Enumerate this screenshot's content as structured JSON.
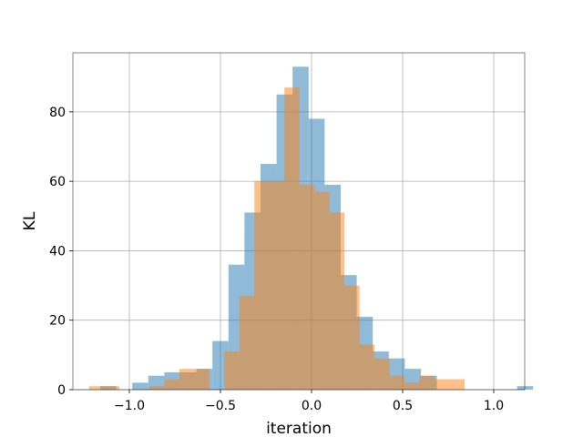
{
  "chart_data": {
    "type": "bar",
    "title": "",
    "xlabel": "iteration",
    "ylabel": "KL",
    "xlim": [
      -1.31,
      1.17
    ],
    "ylim": [
      0,
      97
    ],
    "x_ticks": [
      -1.0,
      -0.5,
      0.0,
      0.5,
      1.0
    ],
    "x_tick_labels": [
      "−1.0",
      "−0.5",
      "0.0",
      "0.5",
      "1.0"
    ],
    "y_ticks": [
      0,
      20,
      40,
      60,
      80
    ],
    "y_tick_labels": [
      "0",
      "20",
      "40",
      "60",
      "80"
    ],
    "grid": true,
    "legend": "none",
    "series": [
      {
        "color": "#1f77b4",
        "opacity": 0.5,
        "bin_start": -1.16,
        "bin_width": 0.088,
        "values": [
          1,
          0,
          2,
          4,
          5,
          5,
          6,
          14,
          36,
          51,
          65,
          85,
          93,
          78,
          59,
          33,
          21,
          11,
          9,
          6,
          4,
          0,
          0,
          0,
          0,
          0,
          1
        ]
      },
      {
        "color": "#ff7f0e",
        "opacity": 0.5,
        "bin_start": -1.22,
        "bin_width": 0.0824,
        "values": [
          1,
          1,
          0,
          0,
          1,
          3,
          6,
          6,
          0,
          11,
          27,
          60,
          60,
          87,
          59,
          57,
          51,
          30,
          13,
          9,
          4,
          2,
          4,
          3,
          3
        ]
      }
    ]
  }
}
